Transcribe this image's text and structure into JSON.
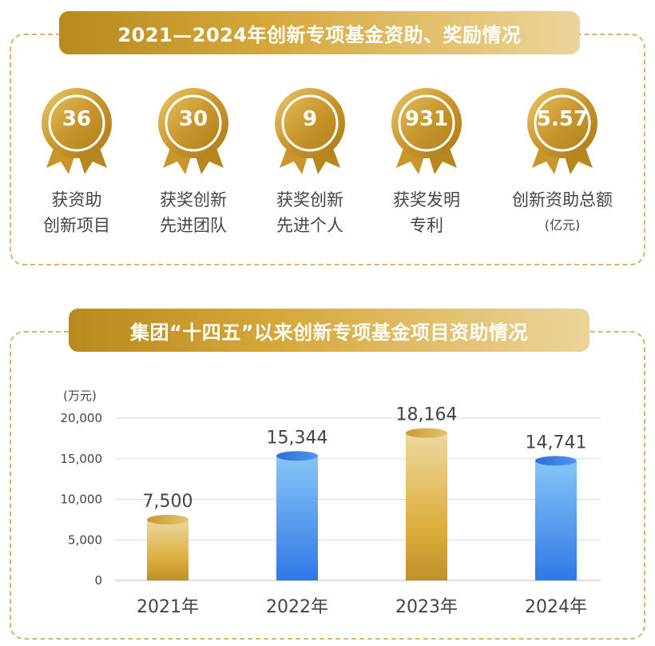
{
  "top_section": {
    "title": "2021—2024年创新专项基金资助、奖励情况",
    "stats": [
      {
        "value": "36",
        "label_line1": "获资助",
        "label_line2": "创新项目",
        "unit": ""
      },
      {
        "value": "30",
        "label_line1": "获奖创新",
        "label_line2": "先进团队",
        "unit": ""
      },
      {
        "value": "9",
        "label_line1": "获奖创新",
        "label_line2": "先进个人",
        "unit": ""
      },
      {
        "value": "931",
        "label_line1": "获奖发明",
        "label_line2": "专利",
        "unit": ""
      },
      {
        "value": "5.57",
        "label_line1": "创新资助总额",
        "label_line2": "",
        "unit": "(亿元)"
      }
    ]
  },
  "bottom_section": {
    "title": "集团“十四五”以来创新专项基金项目资助情况"
  },
  "colors": {
    "gold_dark": "#b88a1e",
    "gold_light": "#ecd59a",
    "blue_dark": "#2a74e0",
    "blue_light": "#7cc0f5",
    "dashed_border": "#d7b56a"
  },
  "chart_data": {
    "type": "bar",
    "categories": [
      "2021年",
      "2022年",
      "2023年",
      "2024年"
    ],
    "values": [
      7500,
      15344,
      18164,
      14741
    ],
    "value_labels": [
      "7,500",
      "15,344",
      "18,164",
      "14,741"
    ],
    "bar_colors": [
      "gold",
      "blue",
      "gold",
      "blue"
    ],
    "ylabel": "(万元)",
    "ylim": [
      0,
      20000
    ],
    "yticks": [
      0,
      5000,
      10000,
      15000,
      20000
    ],
    "ytick_labels": [
      "0",
      "5,000",
      "10,000",
      "15,000",
      "20,000"
    ],
    "grid": true
  }
}
